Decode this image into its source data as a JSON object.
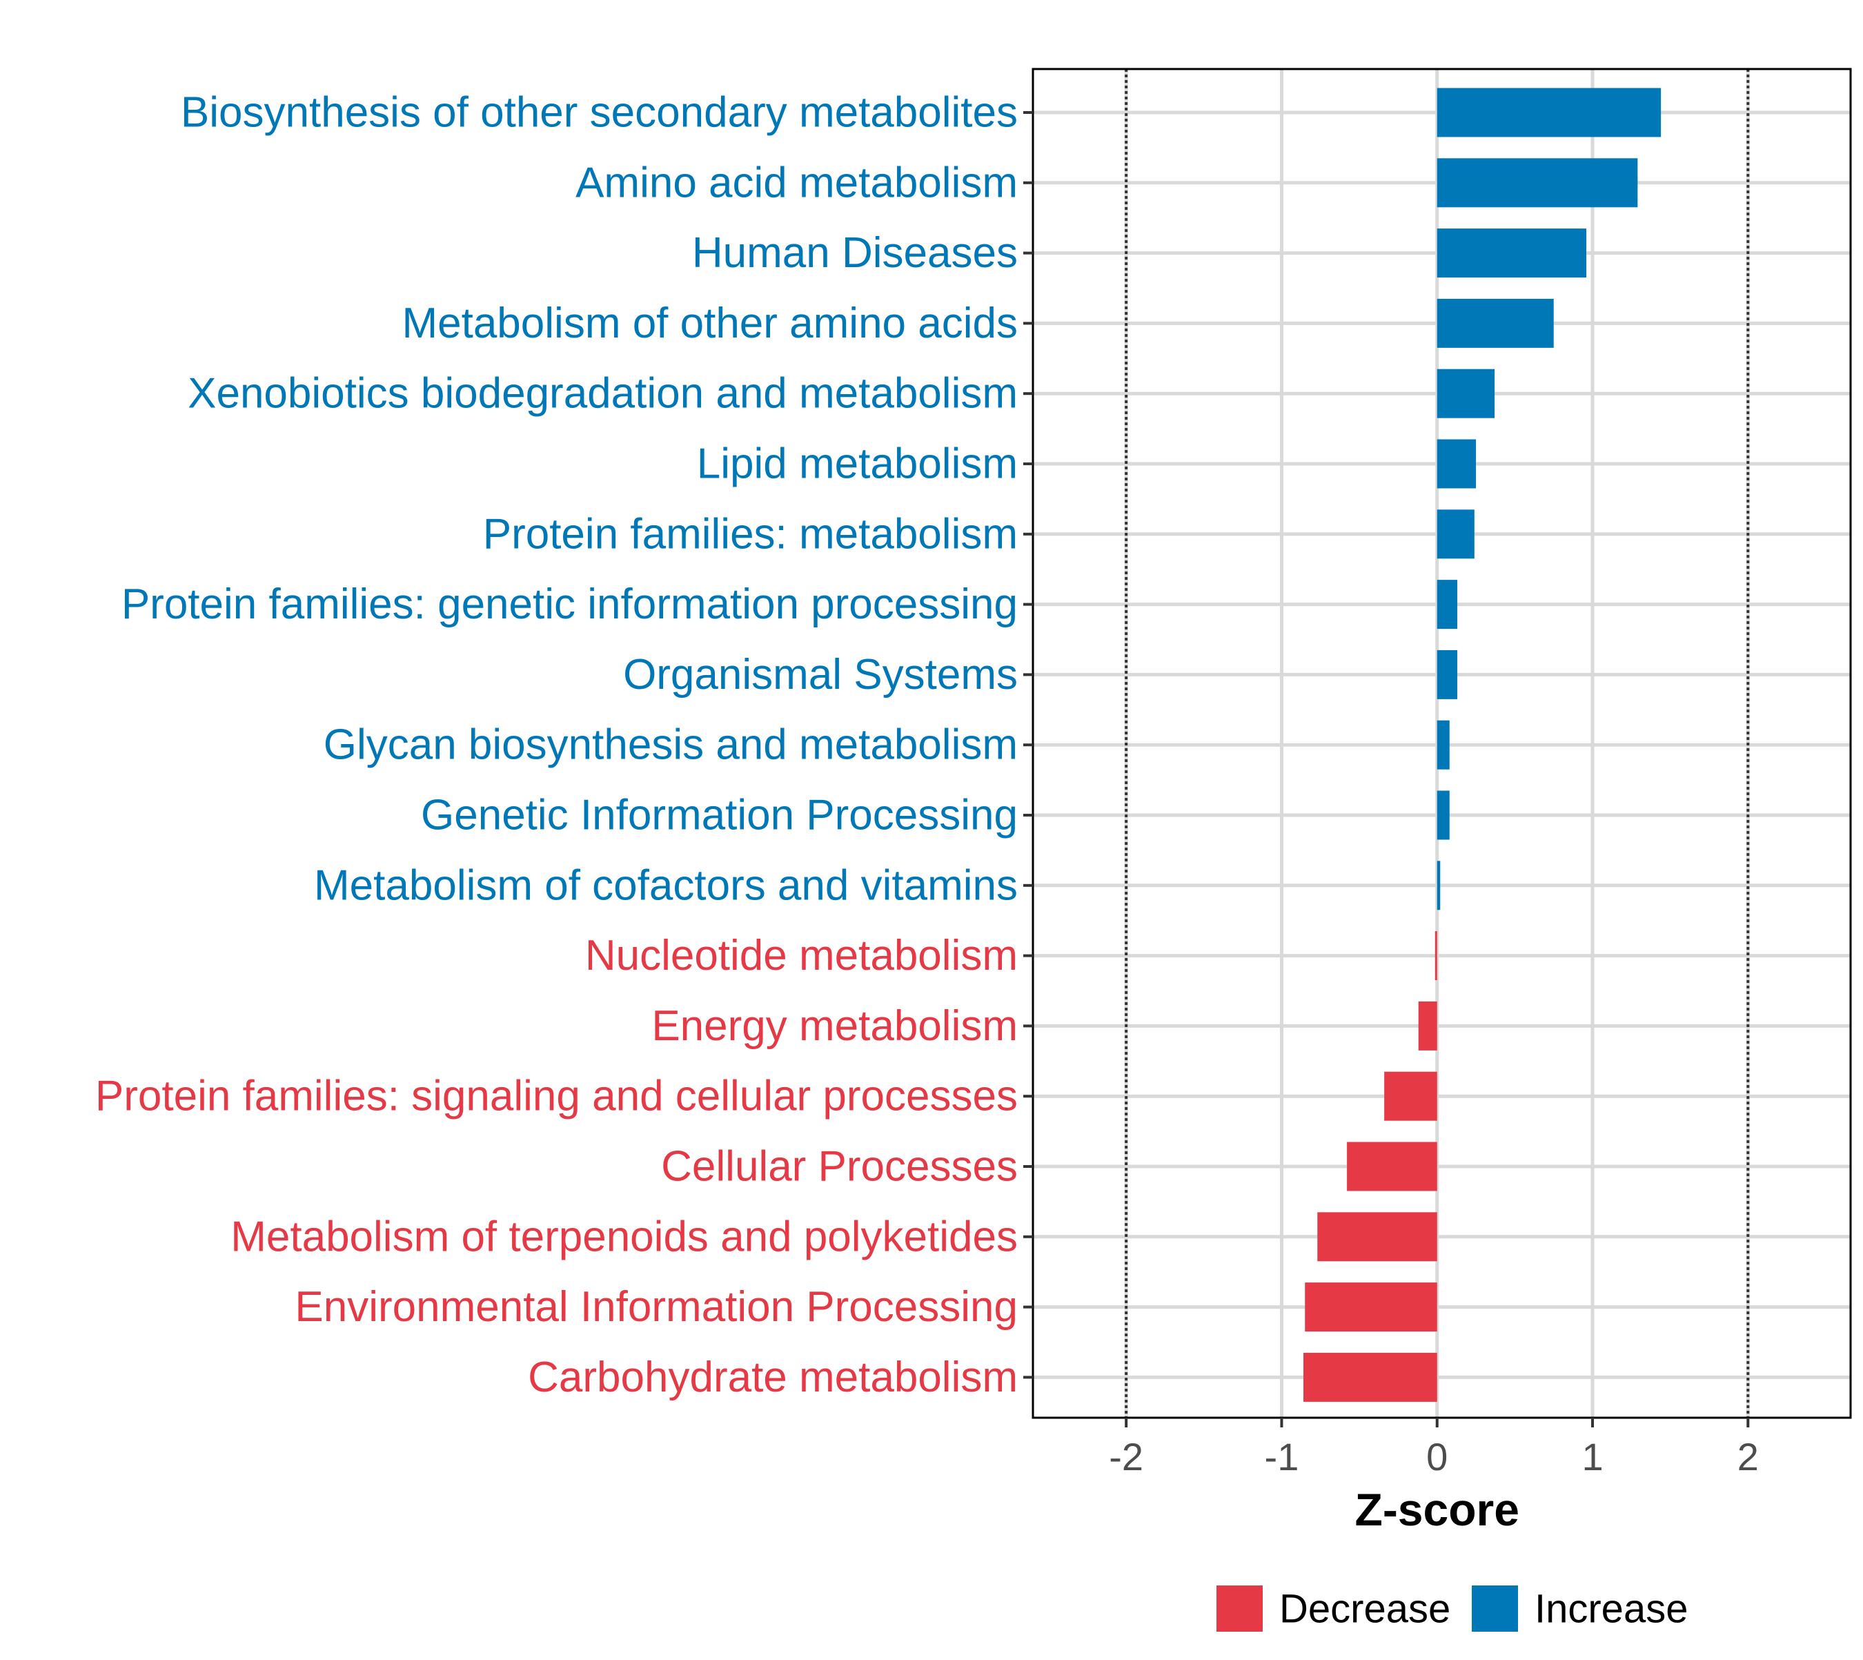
{
  "chart_data": {
    "type": "bar",
    "orientation": "horizontal",
    "xlabel": "Z-score",
    "ylabel": "",
    "xlim": [
      -2.6,
      2.66
    ],
    "x_ticks": [
      -2,
      -1,
      0,
      1,
      2
    ],
    "x_tick_labels": [
      "-2",
      "-1",
      "0",
      "1",
      "2"
    ],
    "reference_lines": [
      -2,
      2
    ],
    "grid": true,
    "categories": [
      "Biosynthesis of other secondary metabolites",
      "Amino acid metabolism",
      "Human Diseases",
      "Metabolism of other amino acids",
      "Xenobiotics biodegradation and metabolism",
      "Lipid metabolism",
      "Protein families: metabolism",
      "Protein families: genetic information processing",
      "Organismal Systems",
      "Glycan biosynthesis and metabolism",
      "Genetic Information Processing",
      "Metabolism of cofactors and vitamins",
      "Nucleotide metabolism",
      "Energy metabolism",
      "Protein families: signaling and cellular processes",
      "Cellular Processes",
      "Metabolism of terpenoids and polyketides",
      "Environmental Information Processing",
      "Carbohydrate metabolism"
    ],
    "values": [
      1.44,
      1.29,
      0.96,
      0.75,
      0.37,
      0.25,
      0.24,
      0.13,
      0.13,
      0.08,
      0.08,
      0.02,
      -0.01,
      -0.12,
      -0.34,
      -0.58,
      -0.77,
      -0.85,
      -0.86
    ],
    "groups": [
      "Increase",
      "Increase",
      "Increase",
      "Increase",
      "Increase",
      "Increase",
      "Increase",
      "Increase",
      "Increase",
      "Increase",
      "Increase",
      "Increase",
      "Decrease",
      "Decrease",
      "Decrease",
      "Decrease",
      "Decrease",
      "Decrease",
      "Decrease"
    ],
    "colors": {
      "Decrease": "#e63946",
      "Increase": "#0077b6"
    },
    "legend": {
      "position": "bottom",
      "entries": [
        "Decrease",
        "Increase"
      ]
    }
  }
}
